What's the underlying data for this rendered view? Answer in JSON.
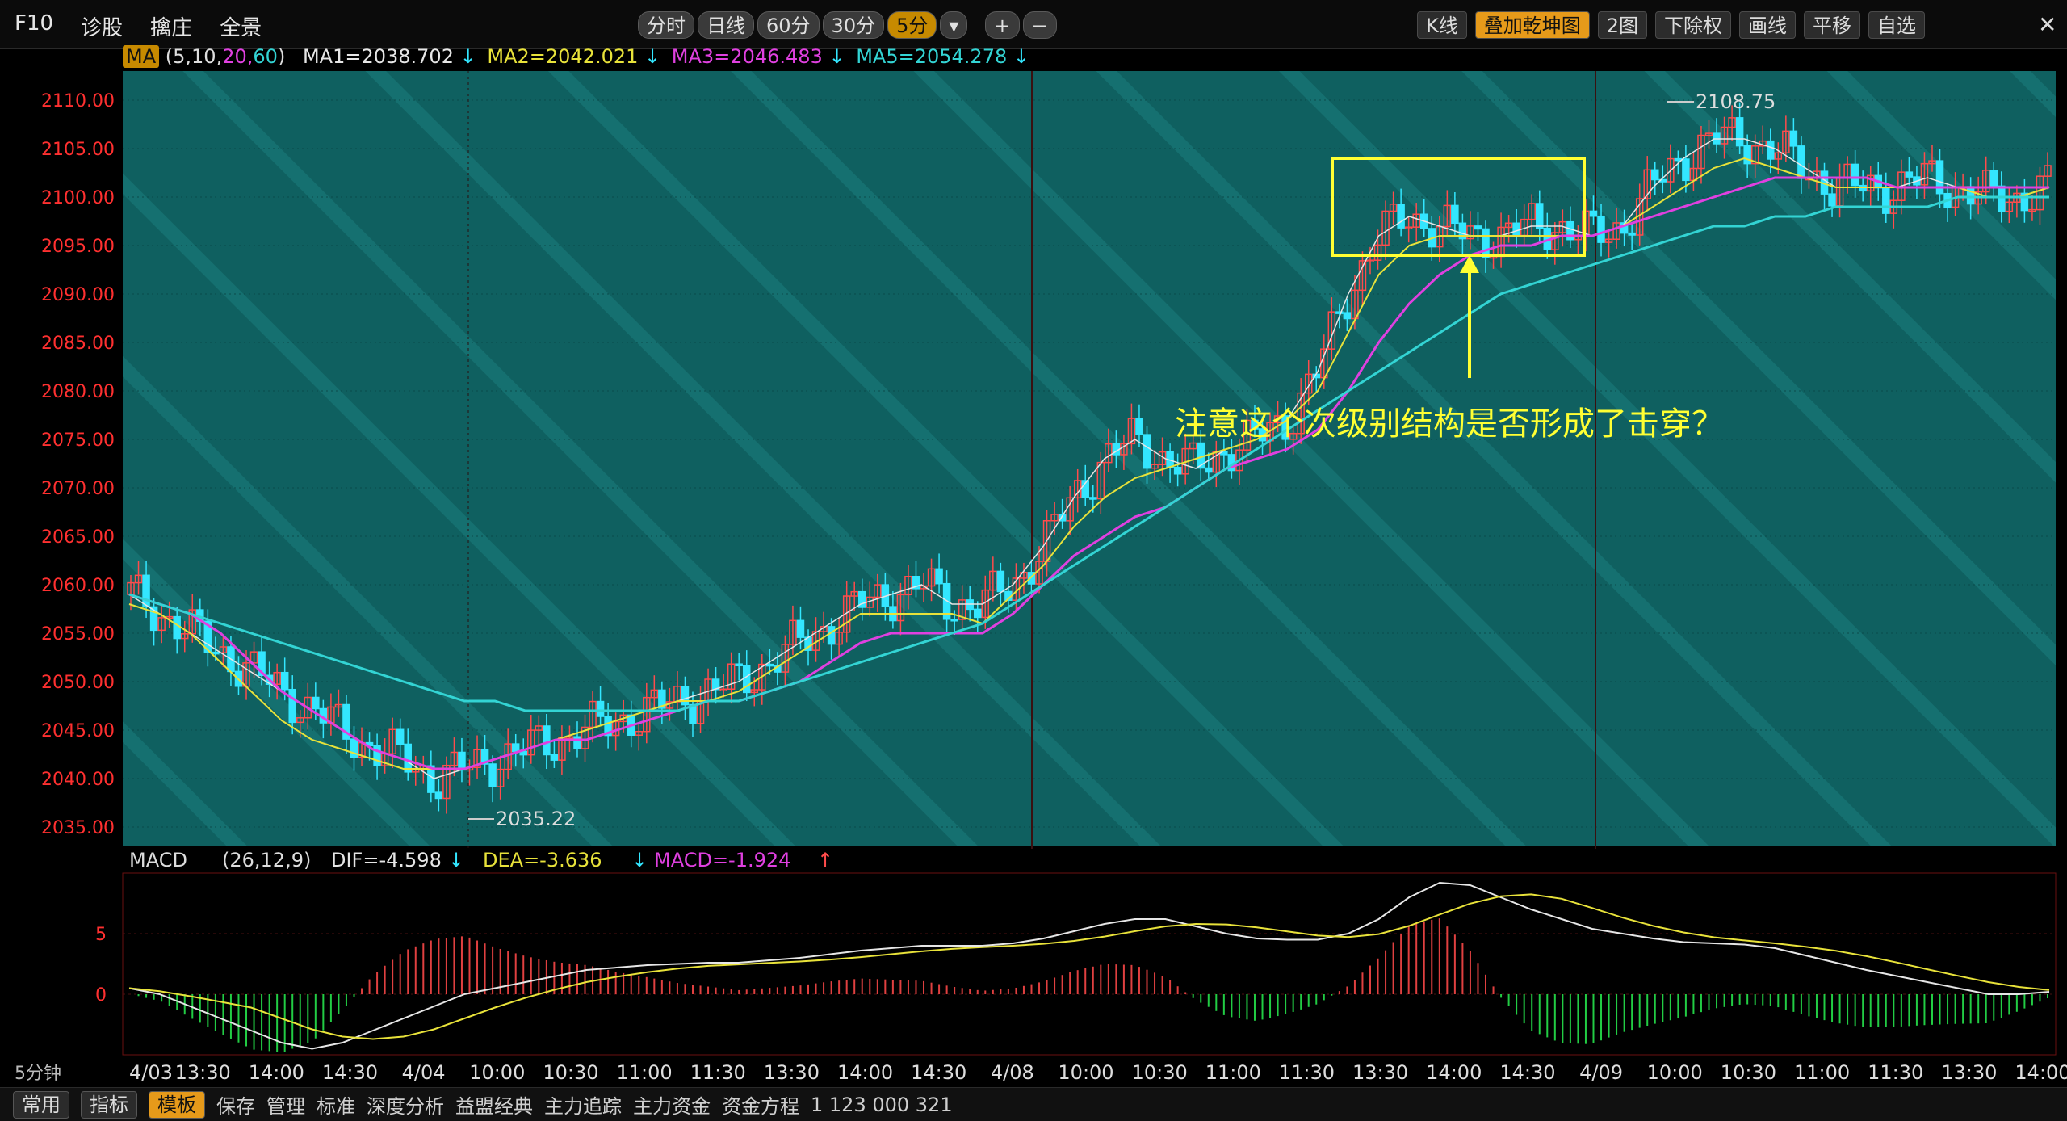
{
  "toolbar": {
    "left": [
      "F10",
      "诊股",
      "擒庄",
      "全景"
    ],
    "period": [
      "分时",
      "日线",
      "60分",
      "30分",
      "5分"
    ],
    "period_active": "5分",
    "zoom": [
      "+",
      "−"
    ],
    "right": [
      "K线",
      "叠加乾坤图",
      "2图",
      "下除权",
      "画线",
      "平移",
      "自选"
    ],
    "close": "✕"
  },
  "legend": {
    "indicator": "MA",
    "params_prefix": "(",
    "p1": "5,10,",
    "p2": "20,",
    "p3": "60",
    "params_suffix": ")",
    "ma1": "MA1=2038.702",
    "ma2": "MA2=2042.021",
    "ma3": "MA3=2046.483",
    "ma5": "MA5=2054.278",
    "down": "↓"
  },
  "price_axis": [
    "2110.00",
    "2105.00",
    "2100.00",
    "2095.00",
    "2090.00",
    "2085.00",
    "2080.00",
    "2075.00",
    "2070.00",
    "2065.00",
    "2060.00",
    "2055.00",
    "2050.00",
    "2045.00",
    "2040.00",
    "2035.00"
  ],
  "annotations": {
    "high_label": "2108.75",
    "low_label": "2035.22",
    "note": "注意这个次级别结构是否形成了击穿？"
  },
  "macd_legend": {
    "name": "MACD",
    "params": "(26,12,9)",
    "dif": "DIF=-4.598",
    "dea": "DEA=-3.636",
    "macd": "MACD=-1.924",
    "down": "↓",
    "up": "↑"
  },
  "macd_axis": [
    "5",
    "0"
  ],
  "time_axis": {
    "period_label": "5分钟",
    "labels": [
      "4/03",
      "13:30",
      "14:00",
      "14:30",
      "4/04",
      "10:00",
      "10:30",
      "11:00",
      "11:30",
      "13:30",
      "14:00",
      "14:30",
      "4/08",
      "10:00",
      "10:30",
      "11:00",
      "11:30",
      "13:30",
      "14:00",
      "14:30",
      "4/09",
      "10:00",
      "10:30",
      "11:00",
      "11:30",
      "13:30",
      "14:00"
    ]
  },
  "bottom_bar": {
    "tabs": [
      "常用",
      "指标",
      "模板"
    ],
    "active": "模板",
    "items": [
      "保存",
      "管理",
      "标准",
      "深度分析",
      "益盟经典",
      "主力追踪",
      "主力资金",
      "资金方程"
    ],
    "numbers": "1  123  000  321"
  },
  "colors": {
    "chart_bg": "#0f6060",
    "up": "#ff4c4c",
    "down": "#33e6ff",
    "ma1": "#e6e6e6",
    "ma2": "#e8e23a",
    "ma3": "#e040e0",
    "ma5": "#33d4d4",
    "axis_text": "#ff3030",
    "note": "#ffff33"
  },
  "chart_data": {
    "type": "candlestick",
    "ylim": [
      2033,
      2113
    ],
    "series": [
      {
        "name": "MA1",
        "values": [
          2059,
          2057,
          2055,
          2053,
          2051,
          2049,
          2047,
          2045,
          2043,
          2042,
          2040,
          2041,
          2042,
          2043,
          2044,
          2045,
          2046,
          2047,
          2048,
          2049,
          2050,
          2052,
          2054,
          2056,
          2058,
          2059,
          2060,
          2058,
          2058,
          2060,
          2064,
          2069,
          2073,
          2075,
          2073,
          2072,
          2074,
          2075,
          2077,
          2082,
          2090,
          2096,
          2098,
          2097,
          2096,
          2096,
          2097,
          2097,
          2096,
          2097,
          2101,
          2104,
          2106,
          2106,
          2105,
          2103,
          2101,
          2101,
          2101,
          2102,
          2101,
          2100,
          2100,
          2101
        ]
      },
      {
        "name": "MA2",
        "values": [
          2058,
          2057,
          2055,
          2052,
          2049,
          2046,
          2044,
          2043,
          2042,
          2041,
          2041,
          2041,
          2042,
          2043,
          2044,
          2045,
          2046,
          2047,
          2048,
          2048,
          2049,
          2051,
          2053,
          2055,
          2057,
          2057,
          2057,
          2057,
          2056,
          2059,
          2062,
          2066,
          2069,
          2071,
          2072,
          2073,
          2074,
          2075,
          2077,
          2080,
          2086,
          2092,
          2095,
          2096,
          2096,
          2096,
          2096,
          2096,
          2096,
          2097,
          2099,
          2101,
          2103,
          2104,
          2103,
          2102,
          2101,
          2101,
          2101,
          2101,
          2101,
          2100,
          2100,
          2101
        ]
      },
      {
        "name": "MA3",
        "values": [
          2059,
          2058,
          2057,
          2055,
          2052,
          2049,
          2047,
          2045,
          2043,
          2042,
          2041,
          2041,
          2042,
          2043,
          2044,
          2044,
          2045,
          2046,
          2047,
          2048,
          2048,
          2049,
          2050,
          2052,
          2054,
          2055,
          2055,
          2055,
          2055,
          2057,
          2060,
          2063,
          2065,
          2067,
          2068,
          2070,
          2072,
          2073,
          2074,
          2076,
          2080,
          2085,
          2089,
          2092,
          2094,
          2095,
          2095,
          2096,
          2096,
          2097,
          2098,
          2099,
          2100,
          2101,
          2102,
          2102,
          2102,
          2102,
          2101,
          2101,
          2101,
          2101,
          2101,
          2101
        ]
      },
      {
        "name": "MA5",
        "values": [
          2059,
          2058,
          2057,
          2056,
          2055,
          2054,
          2053,
          2052,
          2051,
          2050,
          2049,
          2048,
          2048,
          2047,
          2047,
          2047,
          2047,
          2047,
          2047,
          2048,
          2048,
          2049,
          2050,
          2051,
          2052,
          2053,
          2054,
          2055,
          2056,
          2058,
          2060,
          2062,
          2064,
          2066,
          2068,
          2070,
          2072,
          2074,
          2076,
          2078,
          2080,
          2082,
          2084,
          2086,
          2088,
          2090,
          2091,
          2092,
          2093,
          2094,
          2095,
          2096,
          2097,
          2097,
          2098,
          2098,
          2099,
          2099,
          2099,
          2099,
          2100,
          2100,
          2100,
          2100
        ]
      }
    ],
    "high": 2108.75,
    "low": 2035.22,
    "macd": {
      "ylim": [
        -5,
        10
      ],
      "dif": [
        0.5,
        0,
        -1,
        -2,
        -3,
        -4,
        -4.5,
        -4,
        -3,
        -2,
        -1,
        0,
        0.5,
        1,
        1.5,
        2,
        2.2,
        2.4,
        2.5,
        2.6,
        2.6,
        2.8,
        3,
        3.3,
        3.6,
        3.8,
        4,
        4,
        4,
        4.2,
        4.6,
        5.2,
        5.8,
        6.2,
        6.2,
        5.6,
        5,
        4.6,
        4.5,
        4.5,
        5,
        6.2,
        8,
        9.2,
        9,
        8,
        7,
        6.2,
        5.4,
        5,
        4.6,
        4.3,
        4.2,
        4.1,
        3.8,
        3.2,
        2.6,
        2,
        1.5,
        1,
        0.5,
        0,
        0,
        0.2
      ]
    }
  }
}
